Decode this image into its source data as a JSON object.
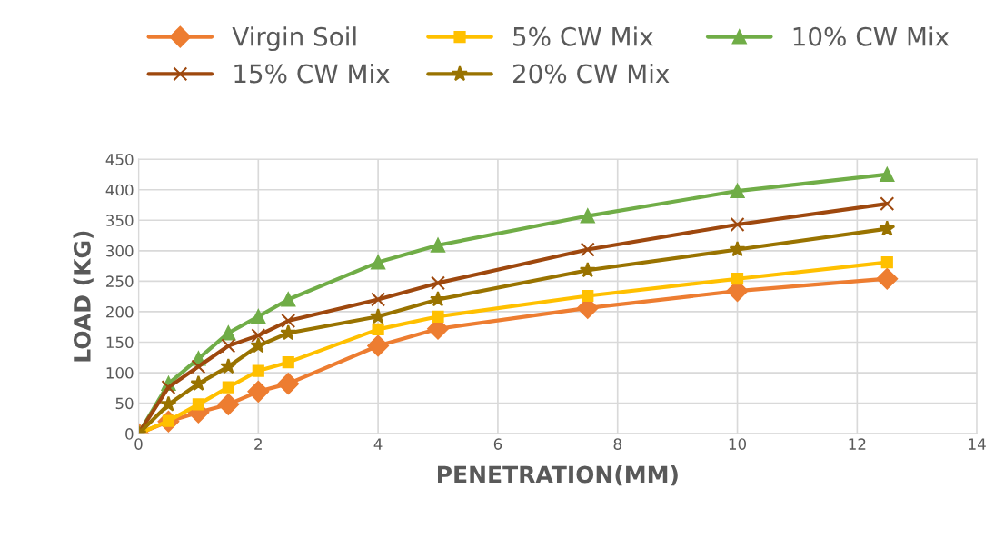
{
  "chart_data": {
    "type": "line",
    "xlabel": "PENETRATION(MM)",
    "ylabel": "LOAD (KG)",
    "x": [
      0,
      0.5,
      1,
      1.5,
      2,
      2.5,
      4,
      5,
      7.5,
      10,
      12.5
    ],
    "series": [
      {
        "name": "Virgin Soil",
        "color": "#ed7d31",
        "marker": "diamond",
        "values": [
          0,
          20,
          35,
          48,
          69,
          82,
          144,
          172,
          206,
          234,
          254
        ]
      },
      {
        "name": "5% CW Mix",
        "color": "#ffc000",
        "marker": "square",
        "values": [
          0,
          21,
          48,
          76,
          103,
          117,
          171,
          192,
          226,
          254,
          281
        ]
      },
      {
        "name": "10% CW Mix",
        "color": "#70ad47",
        "marker": "triangle",
        "values": [
          0,
          82,
          123,
          165,
          192,
          220,
          281,
          309,
          357,
          398,
          425
        ]
      },
      {
        "name": "15% CW Mix",
        "color": "#9e480e",
        "marker": "cross",
        "values": [
          0,
          76,
          110,
          144,
          161,
          185,
          220,
          247,
          302,
          343,
          377
        ]
      },
      {
        "name": "20% CW Mix",
        "color": "#997300",
        "marker": "star",
        "values": [
          0,
          48,
          82,
          110,
          144,
          165,
          192,
          220,
          268,
          302,
          336
        ]
      }
    ],
    "xlim": [
      0,
      14
    ],
    "xticks": [
      0,
      2,
      4,
      6,
      8,
      10,
      12,
      14
    ],
    "ylim": [
      0,
      450
    ],
    "yticks": [
      0,
      50,
      100,
      150,
      200,
      250,
      300,
      350,
      400,
      450
    ],
    "grid": true,
    "legend": "top",
    "line_style": "solid"
  }
}
